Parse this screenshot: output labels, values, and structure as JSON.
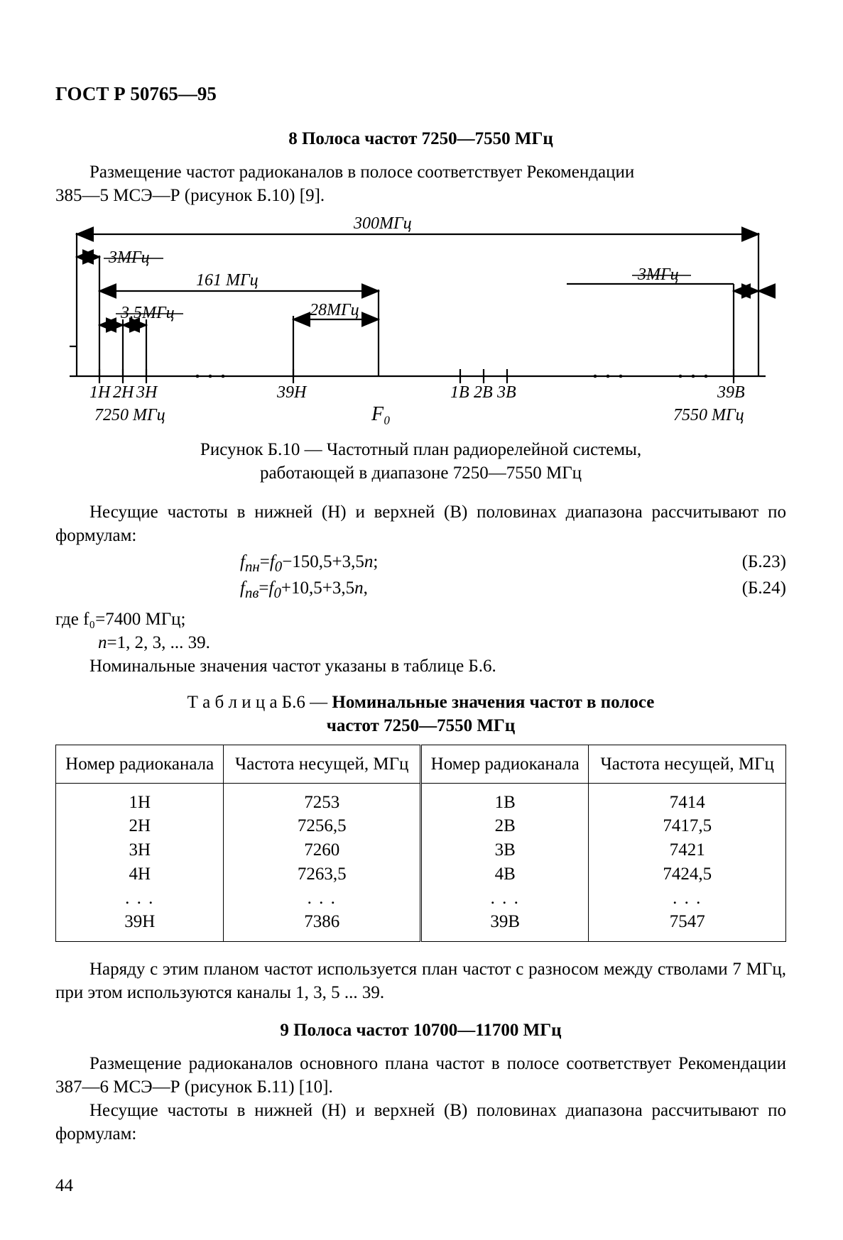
{
  "header": "ГОСТ Р 50765—95",
  "section8": {
    "title": "8 Полоса частот 7250—7550 МГц",
    "p1a": "Размещение частот радиоканалов в полосе  соответствует  Рекомендации",
    "p1b": "385—5 МСЭ—Р (рисунок Б.10) [9].",
    "fig": {
      "w300": "300МГц",
      "w3a": "3МГц",
      "w161": "161  МГц",
      "w28": "28МГц",
      "w35": "3,5МГц",
      "w3b": "3МГц",
      "t1h": "1Н",
      "t2h": "2Н",
      "t3h": "3Н",
      "t39h": "39Н",
      "t1v": "1В",
      "t2v": "2В",
      "t3v": "3В",
      "t39v": "39В",
      "f7250": "7250 МГц",
      "f7550": "7550 МГц",
      "f0": "F₀"
    },
    "fig_caption_l1": "Рисунок Б.10 — Частотный план радиорелейной системы,",
    "fig_caption_l2": "работающей в диапазоне 7250—7550 МГц",
    "p2": "Несущие частоты в нижней (Н) и верхней (В) половинах  диапазона рассчитывают по формулам:",
    "eq23": "f<sub>nн</sub>=f<sub>0</sub>−150,5+3,5n;",
    "eq23txt": {
      "f": "f",
      "nn": "nн",
      "eq": "=",
      "f0": "f",
      "z": "0",
      "rest": "−150,5+3,5",
      "nv": "n",
      ";": ";"
    },
    "eq23num": "(Б.23)",
    "eq24txt": {
      "f": "f",
      "nn": "nв",
      "eq": "=",
      "f0": "f",
      "z": "0",
      "rest": "+10,5+3,5",
      "nv": "n",
      ",": ","
    },
    "eq24num": "(Б.24)",
    "where_l1": "где f₀=7400 МГц;",
    "where_l2": "n=1, 2, 3, ... 39.",
    "p3": "Номинальные значения частот указаны в таблице Б.6.",
    "table": {
      "title_pre": "Т а б л и ц а  Б.6 — ",
      "title_b1": "Номинальные значения частот в полосе",
      "title_b2": "частот 7250—7550 МГц",
      "h1": "Номер радиоканала",
      "h2": "Частота несущей, МГц",
      "h3": "Номер радиоканала",
      "h4": "Частота несущей, МГц",
      "c1": [
        "1Н",
        "2Н",
        "3Н",
        "4Н",
        ". . .",
        "39Н"
      ],
      "c2": [
        "7253",
        "7256,5",
        "7260",
        "7263,5",
        ". . .",
        "7386"
      ],
      "c3": [
        "1В",
        "2В",
        "3В",
        "4В",
        ". . .",
        "39В"
      ],
      "c4": [
        "7414",
        "7417,5",
        "7421",
        "7424,5",
        ". . .",
        "7547"
      ]
    },
    "p4": "Наряду с этим планом  частот используется план частот с разносом между стволами 7 МГц, при этом используются каналы 1, 3, 5 ... 39."
  },
  "section9": {
    "title": "9 Полоса частот 10700—11700 МГц",
    "p1": "Размещение радиоканалов основного плана частот в полосе  соответствует Рекомендации 387—6 МСЭ—Р (рисунок Б.11) [10].",
    "p2": "Несущие частоты в нижней (Н) и верхней (В) половинах диапазона рассчитывают по формулам:"
  },
  "page": "44",
  "style": {
    "stroke": "#000000",
    "bg": "#ffffff",
    "font_base": 25,
    "font_fig": 24,
    "font_fig_i": 26
  }
}
